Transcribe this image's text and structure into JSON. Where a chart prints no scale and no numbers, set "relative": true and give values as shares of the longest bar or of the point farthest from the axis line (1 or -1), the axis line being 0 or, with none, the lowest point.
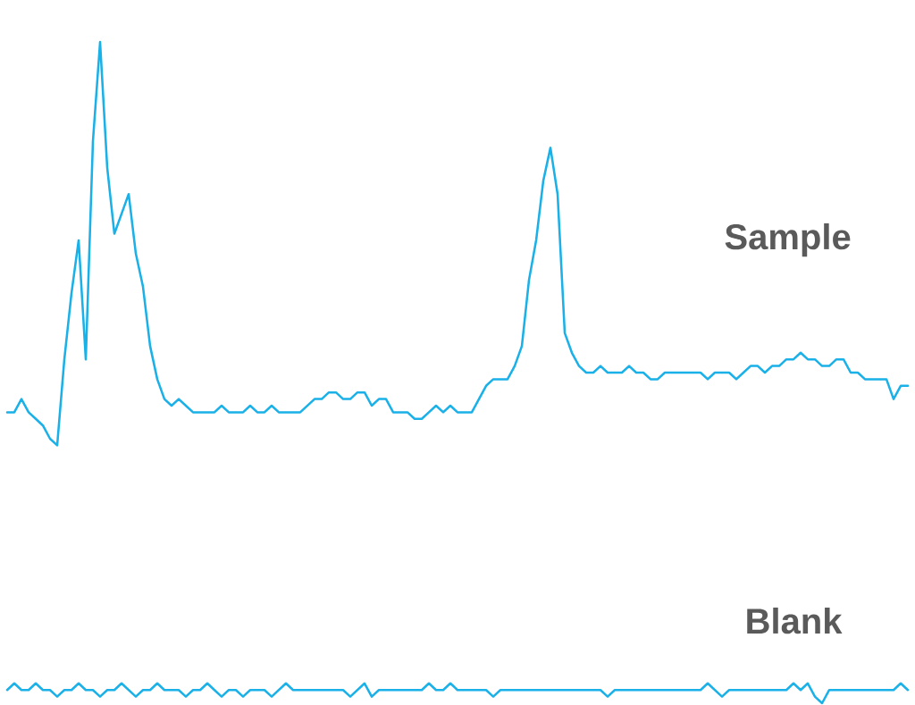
{
  "chart_data": {
    "type": "line",
    "relative": true,
    "categories": [
      null,
      null,
      null,
      null,
      null,
      null,
      null,
      null,
      null,
      null,
      null,
      null,
      null,
      null,
      null,
      null,
      null,
      null,
      null,
      null,
      null,
      null,
      null,
      null,
      null,
      null,
      null,
      null,
      null,
      null,
      null,
      null,
      null,
      null,
      null,
      null,
      null,
      null,
      null,
      null,
      null,
      null,
      null,
      null,
      null,
      null,
      null,
      null,
      null,
      null,
      null,
      null,
      null,
      null,
      null,
      null,
      null,
      null,
      null,
      null,
      null,
      null,
      null,
      null,
      null,
      null,
      null,
      null,
      null,
      null,
      null,
      null,
      null,
      null,
      null,
      null,
      null,
      null,
      null,
      null,
      null,
      null,
      null,
      null,
      null,
      null,
      null,
      null,
      null,
      null,
      null,
      null,
      null,
      null,
      null,
      null,
      null,
      null,
      null,
      null,
      null,
      null,
      null,
      null,
      null,
      null,
      null,
      null,
      null,
      null,
      null,
      null,
      null,
      null,
      null,
      null,
      null,
      null,
      null,
      null,
      null,
      null,
      null,
      null,
      null,
      null,
      null
    ],
    "series": [
      {
        "name": "Sample",
        "color": "#1ab0e8",
        "values": [
          0.44,
          0.44,
          0.46,
          0.44,
          0.43,
          0.42,
          0.4,
          0.39,
          0.52,
          0.62,
          0.7,
          0.52,
          0.85,
          1.0,
          0.81,
          0.71,
          0.74,
          0.77,
          0.68,
          0.63,
          0.54,
          0.49,
          0.46,
          0.45,
          0.46,
          0.45,
          0.44,
          0.44,
          0.44,
          0.44,
          0.45,
          0.44,
          0.44,
          0.44,
          0.45,
          0.44,
          0.44,
          0.45,
          0.44,
          0.44,
          0.44,
          0.44,
          0.45,
          0.46,
          0.46,
          0.47,
          0.47,
          0.46,
          0.46,
          0.47,
          0.47,
          0.45,
          0.46,
          0.46,
          0.44,
          0.44,
          0.44,
          0.43,
          0.43,
          0.44,
          0.45,
          0.44,
          0.45,
          0.44,
          0.44,
          0.44,
          0.46,
          0.48,
          0.49,
          0.49,
          0.49,
          0.51,
          0.54,
          0.64,
          0.7,
          0.79,
          0.84,
          0.77,
          0.56,
          0.53,
          0.51,
          0.5,
          0.5,
          0.51,
          0.5,
          0.5,
          0.5,
          0.51,
          0.5,
          0.5,
          0.49,
          0.49,
          0.5,
          0.5,
          0.5,
          0.5,
          0.5,
          0.5,
          0.49,
          0.5,
          0.5,
          0.5,
          0.49,
          0.5,
          0.51,
          0.51,
          0.5,
          0.51,
          0.51,
          0.52,
          0.52,
          0.53,
          0.52,
          0.52,
          0.51,
          0.51,
          0.52,
          0.52,
          0.5,
          0.5,
          0.49,
          0.49,
          0.49,
          0.49,
          0.46,
          0.48,
          0.48
        ]
      },
      {
        "name": "Blank",
        "color": "#1ab0e8",
        "values": [
          0.02,
          0.03,
          0.02,
          0.02,
          0.03,
          0.02,
          0.02,
          0.01,
          0.02,
          0.02,
          0.03,
          0.02,
          0.02,
          0.01,
          0.02,
          0.02,
          0.03,
          0.02,
          0.01,
          0.02,
          0.02,
          0.03,
          0.02,
          0.02,
          0.02,
          0.01,
          0.02,
          0.02,
          0.03,
          0.02,
          0.01,
          0.02,
          0.02,
          0.01,
          0.02,
          0.02,
          0.02,
          0.01,
          0.02,
          0.03,
          0.02,
          0.02,
          0.02,
          0.02,
          0.02,
          0.02,
          0.02,
          0.02,
          0.01,
          0.02,
          0.03,
          0.01,
          0.02,
          0.02,
          0.02,
          0.02,
          0.02,
          0.02,
          0.02,
          0.03,
          0.02,
          0.02,
          0.03,
          0.02,
          0.02,
          0.02,
          0.02,
          0.02,
          0.01,
          0.02,
          0.02,
          0.02,
          0.02,
          0.02,
          0.02,
          0.02,
          0.02,
          0.02,
          0.02,
          0.02,
          0.02,
          0.02,
          0.02,
          0.02,
          0.01,
          0.02,
          0.02,
          0.02,
          0.02,
          0.02,
          0.02,
          0.02,
          0.02,
          0.02,
          0.02,
          0.02,
          0.02,
          0.02,
          0.03,
          0.02,
          0.01,
          0.02,
          0.02,
          0.02,
          0.02,
          0.02,
          0.02,
          0.02,
          0.02,
          0.02,
          0.03,
          0.02,
          0.03,
          0.01,
          0.0,
          0.02,
          0.02,
          0.02,
          0.02,
          0.02,
          0.02,
          0.02,
          0.02,
          0.02,
          0.02,
          0.03,
          0.02
        ]
      }
    ]
  }
}
